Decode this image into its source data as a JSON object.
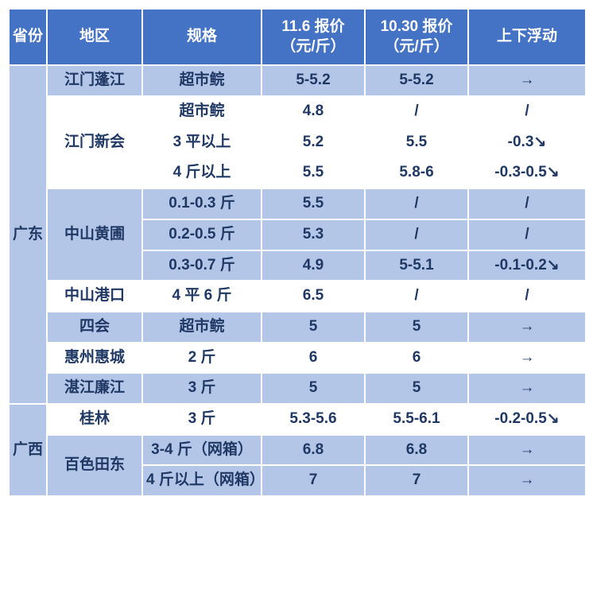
{
  "headers": {
    "province": "省份",
    "region": "地区",
    "spec": "规格",
    "price1": "11.6 报价（元/斤）",
    "price2": "10.30 报价（元/斤）",
    "change": "上下浮动"
  },
  "provinces": [
    {
      "name": "广东",
      "row_count": 11
    },
    {
      "name": "广西",
      "row_count": 3
    }
  ],
  "regions": [
    {
      "name": "江门蓬江",
      "row_count": 1,
      "band": "dark"
    },
    {
      "name": "江门新会",
      "row_count": 3,
      "band": "light"
    },
    {
      "name": "中山黄圃",
      "row_count": 3,
      "band": "dark"
    },
    {
      "name": "中山港口",
      "row_count": 1,
      "band": "light"
    },
    {
      "name": "四会",
      "row_count": 1,
      "band": "dark"
    },
    {
      "name": "惠州惠城",
      "row_count": 1,
      "band": "light"
    },
    {
      "name": "湛江廉江",
      "row_count": 1,
      "band": "dark"
    },
    {
      "name": "桂林",
      "row_count": 1,
      "band": "light"
    },
    {
      "name": "百色田东",
      "row_count": 2,
      "band": "dark"
    }
  ],
  "rows": [
    {
      "spec": "超市鲩",
      "p1": "5-5.2",
      "p2": "5-5.2",
      "chg": "→"
    },
    {
      "spec": "超市鲩",
      "p1": "4.8",
      "p2": "/",
      "chg": "/"
    },
    {
      "spec": "3 平以上",
      "p1": "5.2",
      "p2": "5.5",
      "chg": "-0.3↘"
    },
    {
      "spec": "4 斤以上",
      "p1": "5.5",
      "p2": "5.8-6",
      "chg": "-0.3-0.5↘"
    },
    {
      "spec": "0.1-0.3 斤",
      "p1": "5.5",
      "p2": "/",
      "chg": "/"
    },
    {
      "spec": "0.2-0.5 斤",
      "p1": "5.3",
      "p2": "/",
      "chg": "/"
    },
    {
      "spec": "0.3-0.7 斤",
      "p1": "4.9",
      "p2": "5-5.1",
      "chg": "-0.1-0.2↘"
    },
    {
      "spec": "4 平 6 斤",
      "p1": "6.5",
      "p2": "/",
      "chg": "/"
    },
    {
      "spec": "超市鲩",
      "p1": "5",
      "p2": "5",
      "chg": "→"
    },
    {
      "spec": "2 斤",
      "p1": "6",
      "p2": "6",
      "chg": "→"
    },
    {
      "spec": "3 斤",
      "p1": "5",
      "p2": "5",
      "chg": "→"
    },
    {
      "spec": "3 斤",
      "p1": "5.3-5.6",
      "p2": "5.5-6.1",
      "chg": "-0.2-0.5↘"
    },
    {
      "spec": "3-4 斤（网箱）",
      "p1": "6.8",
      "p2": "6.8",
      "chg": "→"
    },
    {
      "spec": "4 斤以上（网箱）",
      "p1": "7",
      "p2": "7",
      "chg": "→"
    }
  ],
  "colors": {
    "header_bg": "#4472c4",
    "header_fg": "#ffffff",
    "band_dark": "#b4c6e7",
    "band_light": "#ffffff",
    "text": "#1f3864",
    "border": "#ffffff"
  }
}
